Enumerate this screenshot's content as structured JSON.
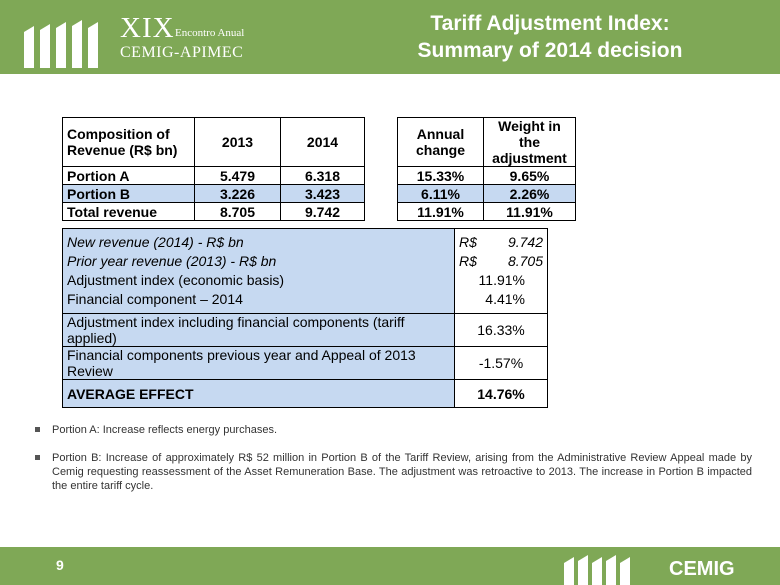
{
  "header": {
    "logo_number": "XIX",
    "logo_event": "Encontro Anual",
    "logo_org": "CEMIG-APIMEC",
    "title_line1": "Tariff Adjustment Index:",
    "title_line2": "Summary of 2014 decision"
  },
  "composition_table": {
    "headers": {
      "composition": "Composition of Revenue (R$ bn)",
      "y2013": "2013",
      "y2014": "2014",
      "annual_change": "Annual change",
      "weight": "Weight in the adjustment"
    },
    "rows": [
      {
        "label": "Portion  A",
        "v2013": "5.479",
        "v2014": "6.318",
        "change": "15.33%",
        "weight": "9.65%"
      },
      {
        "label": "Portion  B",
        "v2013": "3.226",
        "v2014": "3.423",
        "change": "6.11%",
        "weight": "2.26%"
      },
      {
        "label": "Total revenue",
        "v2013": "8.705",
        "v2014": "9.742",
        "change": "11.91%",
        "weight": "11.91%"
      }
    ]
  },
  "summary_table": {
    "new_revenue_label": "New revenue (2014) - R$ bn",
    "new_revenue_currency": "R$",
    "new_revenue_value": "9.742",
    "prior_revenue_label": "Prior year revenue (2013) - R$ bn",
    "prior_revenue_currency": "R$",
    "prior_revenue_value": "8.705",
    "adj_index_label": "Adjustment index (economic basis)",
    "adj_index_value": "11.91%",
    "fin_component_label": "Financial component – 2014",
    "fin_component_value": "4.41%",
    "adj_incl_label": "Adjustment index including financial components (tariff applied)",
    "adj_incl_value": "16.33%",
    "fin_prev_label": "Financial components previous year and Appeal of 2013 Review",
    "fin_prev_value": "-1.57%",
    "avg_effect_label": "AVERAGE EFFECT",
    "avg_effect_value": "14.76%"
  },
  "bullets": [
    "Portion A: Increase reflects energy purchases.",
    "Portion B: Increase of approximately R$ 52 million in Portion B of the Tariff Review, arising from the Administrative Review Appeal made by Cemig requesting reassessment of the Asset Remuneration Base. The adjustment was retroactive to 2013. The increase in Portion B impacted the entire tariff cycle."
  ],
  "footer": {
    "page_number": "9",
    "brand": "CEMIG"
  },
  "colors": {
    "header_green": "#7fa856",
    "table_blue": "#c6d9f1"
  }
}
